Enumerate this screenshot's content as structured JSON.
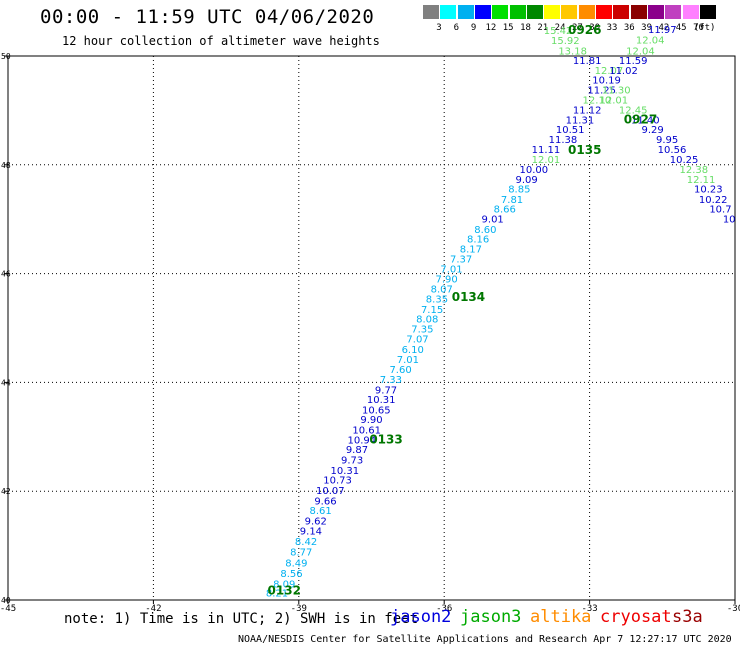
{
  "header": {
    "title": "00:00 - 11:59 UTC 04/06/2020",
    "subtitle": "12 hour collection of altimeter wave heights"
  },
  "legend": {
    "unit": "(ft)",
    "bins": [
      {
        "label": "3",
        "color": "#808080"
      },
      {
        "label": "6",
        "color": "#00ffff"
      },
      {
        "label": "9",
        "color": "#00b0f0"
      },
      {
        "label": "12",
        "color": "#0000ff"
      },
      {
        "label": "15",
        "color": "#00e000"
      },
      {
        "label": "18",
        "color": "#00c000"
      },
      {
        "label": "21",
        "color": "#008800"
      },
      {
        "label": "24",
        "color": "#ffff00"
      },
      {
        "label": "27",
        "color": "#ffc800"
      },
      {
        "label": "30",
        "color": "#ff8c00"
      },
      {
        "label": "33",
        "color": "#ff0000"
      },
      {
        "label": "36",
        "color": "#cc0000"
      },
      {
        "label": "39",
        "color": "#8b0000"
      },
      {
        "label": "42",
        "color": "#8b008b"
      },
      {
        "label": "45",
        "color": "#c040c0"
      },
      {
        "label": "70",
        "color": "#ff80ff"
      },
      {
        "label": "",
        "color": "#000000"
      }
    ]
  },
  "map": {
    "lon_range": [
      -45,
      -30
    ],
    "lat_range": [
      40,
      50
    ],
    "lon_ticks": [
      "-45",
      "-42",
      "-39",
      "-36",
      "-33",
      "-30"
    ],
    "lat_ticks": [
      "40",
      "42",
      "44",
      "46",
      "48",
      "50"
    ],
    "colors": {
      "light_blue": "#00b0f0",
      "dark_blue": "#0000cc",
      "light_green": "#66dd66",
      "dark_green": "#007700"
    },
    "observations": [
      {
        "lon": -39.45,
        "lat": 40.06,
        "text": "8.21",
        "c": "light_blue"
      },
      {
        "lon": -39.3,
        "lat": 40.23,
        "text": "8.09",
        "c": "light_blue"
      },
      {
        "lon": -39.15,
        "lat": 40.42,
        "text": "8.56",
        "c": "light_blue"
      },
      {
        "lon": -39.05,
        "lat": 40.62,
        "text": "8.49",
        "c": "light_blue"
      },
      {
        "lon": -38.95,
        "lat": 40.82,
        "text": "8.77",
        "c": "light_blue"
      },
      {
        "lon": -38.85,
        "lat": 41.01,
        "text": "8.42",
        "c": "light_blue"
      },
      {
        "lon": -38.75,
        "lat": 41.2,
        "text": "9.14",
        "c": "dark_blue"
      },
      {
        "lon": -38.65,
        "lat": 41.39,
        "text": "9.62",
        "c": "dark_blue"
      },
      {
        "lon": -38.55,
        "lat": 41.58,
        "text": "8.61",
        "c": "light_blue"
      },
      {
        "lon": -38.45,
        "lat": 41.76,
        "text": "9.66",
        "c": "dark_blue"
      },
      {
        "lon": -38.35,
        "lat": 41.95,
        "text": "10.07",
        "c": "dark_blue"
      },
      {
        "lon": -38.2,
        "lat": 42.14,
        "text": "10.73",
        "c": "dark_blue"
      },
      {
        "lon": -38.05,
        "lat": 42.32,
        "text": "10.31",
        "c": "dark_blue"
      },
      {
        "lon": -37.9,
        "lat": 42.51,
        "text": "9.73",
        "c": "dark_blue"
      },
      {
        "lon": -37.8,
        "lat": 42.7,
        "text": "9.87",
        "c": "dark_blue"
      },
      {
        "lon": -37.7,
        "lat": 42.88,
        "text": "10.94",
        "c": "dark_blue"
      },
      {
        "lon": -37.6,
        "lat": 43.06,
        "text": "10.61",
        "c": "dark_blue"
      },
      {
        "lon": -37.5,
        "lat": 43.25,
        "text": "9.90",
        "c": "dark_blue"
      },
      {
        "lon": -37.4,
        "lat": 43.43,
        "text": "10.65",
        "c": "dark_blue"
      },
      {
        "lon": -37.3,
        "lat": 43.62,
        "text": "10.31",
        "c": "dark_blue"
      },
      {
        "lon": -37.2,
        "lat": 43.8,
        "text": "9.77",
        "c": "dark_blue"
      },
      {
        "lon": -37.1,
        "lat": 43.99,
        "text": "7.33",
        "c": "light_blue"
      },
      {
        "lon": -36.9,
        "lat": 44.17,
        "text": "7.60",
        "c": "light_blue"
      },
      {
        "lon": -36.75,
        "lat": 44.36,
        "text": "7.01",
        "c": "light_blue"
      },
      {
        "lon": -36.65,
        "lat": 44.54,
        "text": "6.10",
        "c": "light_blue"
      },
      {
        "lon": -36.55,
        "lat": 44.73,
        "text": "7.07",
        "c": "light_blue"
      },
      {
        "lon": -36.45,
        "lat": 44.92,
        "text": "7.35",
        "c": "light_blue"
      },
      {
        "lon": -36.35,
        "lat": 45.1,
        "text": "8.08",
        "c": "light_blue"
      },
      {
        "lon": -36.25,
        "lat": 45.28,
        "text": "7.15",
        "c": "light_blue"
      },
      {
        "lon": -36.15,
        "lat": 45.47,
        "text": "8.35",
        "c": "light_blue"
      },
      {
        "lon": -36.05,
        "lat": 45.65,
        "text": "8.07",
        "c": "light_blue"
      },
      {
        "lon": -35.95,
        "lat": 45.84,
        "text": "7.90",
        "c": "light_blue"
      },
      {
        "lon": -35.85,
        "lat": 46.02,
        "text": "7.01",
        "c": "light_blue"
      },
      {
        "lon": -35.65,
        "lat": 46.2,
        "text": "7.37",
        "c": "light_blue"
      },
      {
        "lon": -35.45,
        "lat": 46.39,
        "text": "8.17",
        "c": "light_blue"
      },
      {
        "lon": -35.3,
        "lat": 46.57,
        "text": "8.16",
        "c": "light_blue"
      },
      {
        "lon": -35.15,
        "lat": 46.75,
        "text": "8.60",
        "c": "light_blue"
      },
      {
        "lon": -35.0,
        "lat": 46.94,
        "text": "9.01",
        "c": "dark_blue"
      },
      {
        "lon": -34.75,
        "lat": 47.12,
        "text": "8.66",
        "c": "light_blue"
      },
      {
        "lon": -34.6,
        "lat": 47.3,
        "text": "7.81",
        "c": "light_blue"
      },
      {
        "lon": -34.45,
        "lat": 47.49,
        "text": "8.85",
        "c": "light_blue"
      },
      {
        "lon": -34.3,
        "lat": 47.67,
        "text": "9.09",
        "c": "dark_blue"
      },
      {
        "lon": -34.15,
        "lat": 47.85,
        "text": "10.00",
        "c": "dark_blue"
      },
      {
        "lon": -33.9,
        "lat": 48.03,
        "text": "12.01",
        "c": "light_green"
      },
      {
        "lon": -33.9,
        "lat": 48.22,
        "text": "11.11",
        "c": "dark_blue"
      },
      {
        "lon": -33.55,
        "lat": 48.4,
        "text": "11.38",
        "c": "dark_blue"
      },
      {
        "lon": -33.4,
        "lat": 48.58,
        "text": "10.51",
        "c": "dark_blue"
      },
      {
        "lon": -33.2,
        "lat": 48.76,
        "text": "11.31",
        "c": "dark_blue"
      },
      {
        "lon": -33.05,
        "lat": 48.94,
        "text": "11.12",
        "c": "dark_blue"
      },
      {
        "lon": -32.85,
        "lat": 49.13,
        "text": "12.10",
        "c": "light_green"
      },
      {
        "lon": -32.75,
        "lat": 49.31,
        "text": "11.25",
        "c": "dark_blue"
      },
      {
        "lon": -32.65,
        "lat": 49.49,
        "text": "10.19",
        "c": "dark_blue"
      },
      {
        "lon": -32.6,
        "lat": 49.67,
        "text": "12.07",
        "c": "light_green"
      },
      {
        "lon": -33.05,
        "lat": 49.85,
        "text": "11.81",
        "c": "dark_blue"
      },
      {
        "lon": -33.35,
        "lat": 50.03,
        "text": "13.18",
        "c": "light_green"
      },
      {
        "lon": -33.5,
        "lat": 50.22,
        "text": "15.92",
        "c": "light_green"
      },
      {
        "lon": -33.65,
        "lat": 50.4,
        "text": "15.42",
        "c": "light_green"
      },
      {
        "lon": -31.5,
        "lat": 50.42,
        "text": "11.97",
        "c": "dark_blue"
      },
      {
        "lon": -31.75,
        "lat": 50.23,
        "text": "12.04",
        "c": "light_green"
      },
      {
        "lon": -31.95,
        "lat": 50.03,
        "text": "12.04",
        "c": "light_green"
      },
      {
        "lon": -32.1,
        "lat": 49.85,
        "text": "11.59",
        "c": "dark_blue"
      },
      {
        "lon": -32.3,
        "lat": 49.67,
        "text": "11.02",
        "c": "dark_blue"
      },
      {
        "lon": -32.45,
        "lat": 49.31,
        "text": "11.30",
        "c": "light_green"
      },
      {
        "lon": -32.5,
        "lat": 49.13,
        "text": "12.01",
        "c": "light_green"
      },
      {
        "lon": -32.1,
        "lat": 48.94,
        "text": "12.45",
        "c": "light_green"
      },
      {
        "lon": -31.85,
        "lat": 48.76,
        "text": "11.40",
        "c": "dark_blue"
      },
      {
        "lon": -31.7,
        "lat": 48.58,
        "text": "9.29",
        "c": "dark_blue"
      },
      {
        "lon": -31.4,
        "lat": 48.4,
        "text": "9.95",
        "c": "dark_blue"
      },
      {
        "lon": -31.3,
        "lat": 48.22,
        "text": "10.56",
        "c": "dark_blue"
      },
      {
        "lon": -31.05,
        "lat": 48.03,
        "text": "10.25",
        "c": "dark_blue"
      },
      {
        "lon": -30.85,
        "lat": 47.85,
        "text": "12.38",
        "c": "light_green"
      },
      {
        "lon": -30.7,
        "lat": 47.67,
        "text": "12.11",
        "c": "light_green"
      },
      {
        "lon": -30.55,
        "lat": 47.49,
        "text": "10.23",
        "c": "dark_blue"
      },
      {
        "lon": -30.45,
        "lat": 47.3,
        "text": "10.22",
        "c": "dark_blue"
      },
      {
        "lon": -30.3,
        "lat": 47.12,
        "text": "10.7",
        "c": "dark_blue"
      },
      {
        "lon": -30.12,
        "lat": 46.94,
        "text": "10",
        "c": "dark_blue"
      }
    ],
    "time_labels": [
      {
        "lon": -39.3,
        "lat": 40.1,
        "text": "0132",
        "c": "dark_green"
      },
      {
        "lon": -37.2,
        "lat": 42.88,
        "text": "0133",
        "c": "dark_green"
      },
      {
        "lon": -35.5,
        "lat": 45.5,
        "text": "0134",
        "c": "dark_green"
      },
      {
        "lon": -33.1,
        "lat": 48.2,
        "text": "0135",
        "c": "dark_green"
      },
      {
        "lon": -33.1,
        "lat": 50.4,
        "text": "0926",
        "c": "dark_green"
      },
      {
        "lon": -31.95,
        "lat": 48.76,
        "text": "0927",
        "c": "dark_green"
      }
    ]
  },
  "footer": {
    "note": "note: 1) Time is in UTC; 2) SWH is in feet",
    "missions": [
      {
        "name": "jason2",
        "color": "#0000dd"
      },
      {
        "name": "jason3",
        "color": "#00aa00"
      },
      {
        "name": "altika",
        "color": "#ff8c00"
      },
      {
        "name": "cryosat",
        "color": "#ee0000"
      },
      {
        "name": "s3a",
        "color": "#990000"
      }
    ],
    "credit": "NOAA/NESDIS Center for Satellite Applications and Research   Apr  7 12:27:17 UTC 2020"
  }
}
